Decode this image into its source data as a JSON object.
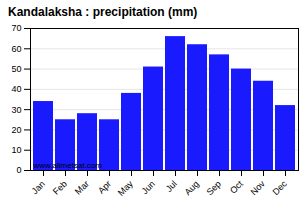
{
  "chart_data": {
    "type": "bar",
    "title": "Kandalaksha : precipitation (mm)",
    "categories": [
      "Jan",
      "Feb",
      "Mar",
      "Apr",
      "May",
      "Jun",
      "Jul",
      "Aug",
      "Sep",
      "Oct",
      "Nov",
      "Dec"
    ],
    "values": [
      34,
      25,
      28,
      25,
      38,
      51,
      66,
      62,
      57,
      50,
      44,
      32
    ],
    "color": "#1a1aff",
    "ylim": [
      0,
      70
    ],
    "yticks": [
      0,
      10,
      20,
      30,
      40,
      50,
      60,
      70
    ],
    "grid": true,
    "annotations": [
      "www.allmetsat.com"
    ]
  }
}
